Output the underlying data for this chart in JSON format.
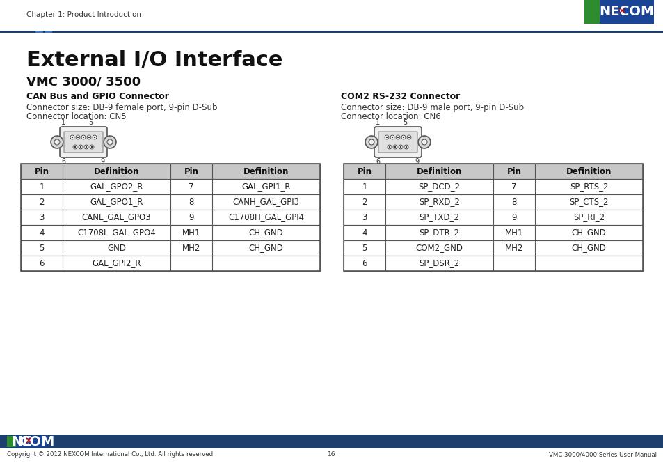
{
  "page_title": "Chapter 1: Product Introduction",
  "main_title": "External I/O Interface",
  "sub_title": "VMC 3000/ 3500",
  "section1_title": "CAN Bus and GPIO Connector",
  "section1_desc1": "Connector size: DB-9 female port, 9-pin D-Sub",
  "section1_desc2": "Connector location: CN5",
  "section2_title": "COM2 RS-232 Connector",
  "section2_desc1": "Connector size: DB-9 male port, 9-pin D-Sub",
  "section2_desc2": "Connector location: CN6",
  "table1_headers": [
    "Pin",
    "Definition",
    "Pin",
    "Definition"
  ],
  "table1_data": [
    [
      "1",
      "GAL_GPO2_R",
      "7",
      "GAL_GPI1_R"
    ],
    [
      "2",
      "GAL_GPO1_R",
      "8",
      "CANH_GAL_GPI3"
    ],
    [
      "3",
      "CANL_GAL_GPO3",
      "9",
      "C1708H_GAL_GPI4"
    ],
    [
      "4",
      "C1708L_GAL_GPO4",
      "MH1",
      "CH_GND"
    ],
    [
      "5",
      "GND",
      "MH2",
      "CH_GND"
    ],
    [
      "6",
      "GAL_GPI2_R",
      "",
      ""
    ]
  ],
  "table2_headers": [
    "Pin",
    "Definition",
    "Pin",
    "Definition"
  ],
  "table2_data": [
    [
      "1",
      "SP_DCD_2",
      "7",
      "SP_RTS_2"
    ],
    [
      "2",
      "SP_RXD_2",
      "8",
      "SP_CTS_2"
    ],
    [
      "3",
      "SP_TXD_2",
      "9",
      "SP_RI_2"
    ],
    [
      "4",
      "SP_DTR_2",
      "MH1",
      "CH_GND"
    ],
    [
      "5",
      "COM2_GND",
      "MH2",
      "CH_GND"
    ],
    [
      "6",
      "SP_DSR_2",
      "",
      ""
    ]
  ],
  "footer_left": "Copyright © 2012 NEXCOM International Co., Ltd. All rights reserved",
  "footer_center": "16",
  "footer_right": "VMC 3000/4000 Series User Manual",
  "bg_color": "#ffffff",
  "header_bar_color": "#1c3f6e",
  "accent_blue": "#4472c4",
  "table_header_bg": "#c8c8c8",
  "table_border_color": "#555555",
  "nexcom_green": "#2d8c2d",
  "nexcom_blue": "#1a4496",
  "footer_bar_color": "#1c3f6e"
}
